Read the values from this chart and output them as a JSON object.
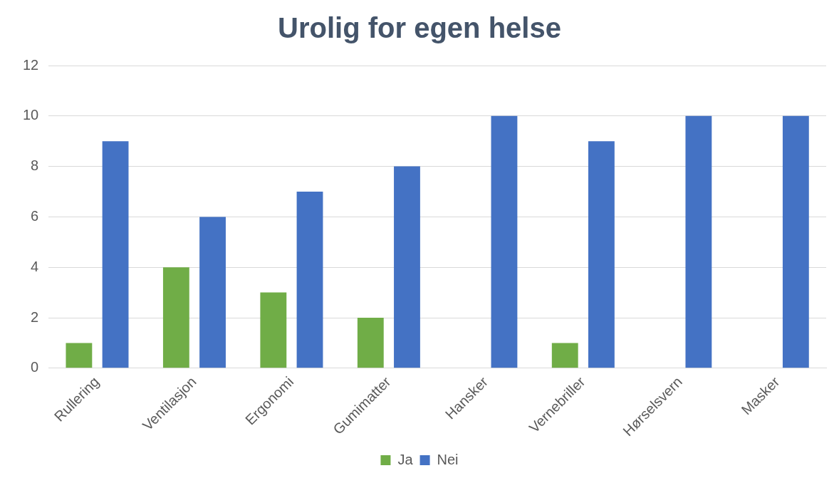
{
  "chart_data": {
    "type": "bar",
    "title": "Urolig for egen helse",
    "categories": [
      "Rullering",
      "Ventilasjon",
      "Ergonomi",
      "Gumimatter",
      "Hansker",
      "Vernebriller",
      "Hørselsvern",
      "Masker"
    ],
    "series": [
      {
        "name": "Ja",
        "color": "#70ad47",
        "values": [
          1,
          4,
          3,
          2,
          0,
          1,
          0,
          0
        ]
      },
      {
        "name": "Nei",
        "color": "#4472c4",
        "values": [
          9,
          6,
          7,
          8,
          10,
          9,
          10,
          10
        ]
      }
    ],
    "ylim": [
      0,
      12
    ],
    "yticks": [
      0,
      2,
      4,
      6,
      8,
      10,
      12
    ],
    "grid": "y",
    "legend": "bottom"
  }
}
